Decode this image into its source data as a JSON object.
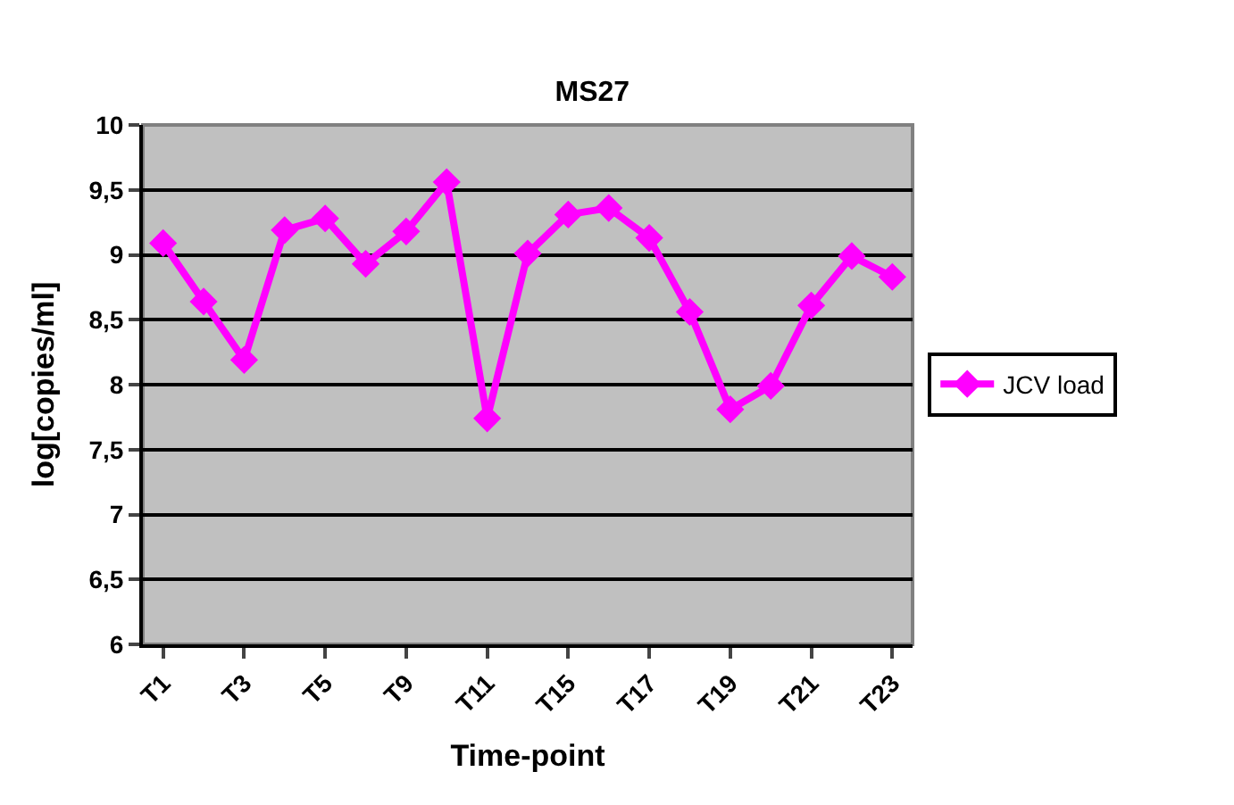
{
  "chart_data": {
    "type": "line",
    "title": "MS27",
    "xlabel": "Time-point",
    "ylabel": "log[copies/ml]",
    "categories": [
      "T1",
      null,
      "T3",
      null,
      "T5",
      null,
      "T9",
      null,
      "T11",
      null,
      "T15",
      null,
      "T17",
      null,
      "T19",
      null,
      "T21",
      null,
      "T23"
    ],
    "series": [
      {
        "name": "JCV load",
        "color": "#ff00ff",
        "values": [
          9.09,
          8.64,
          8.19,
          9.19,
          9.28,
          8.93,
          9.18,
          9.56,
          7.74,
          9.01,
          9.31,
          9.36,
          9.13,
          8.56,
          7.81,
          7.99,
          8.61,
          8.99,
          8.83
        ]
      }
    ],
    "ylim": [
      6,
      10
    ],
    "yticks": [
      6,
      {
        "value": 6.5,
        "label": "6,5"
      },
      7,
      {
        "value": 7.5,
        "label": "7,5"
      },
      8,
      {
        "value": 8.5,
        "label": "8,5"
      },
      9,
      {
        "value": 9.5,
        "label": "9,5"
      },
      10
    ],
    "grid": "y",
    "legend": "right",
    "marker": "diamond",
    "line_style": "solid"
  }
}
